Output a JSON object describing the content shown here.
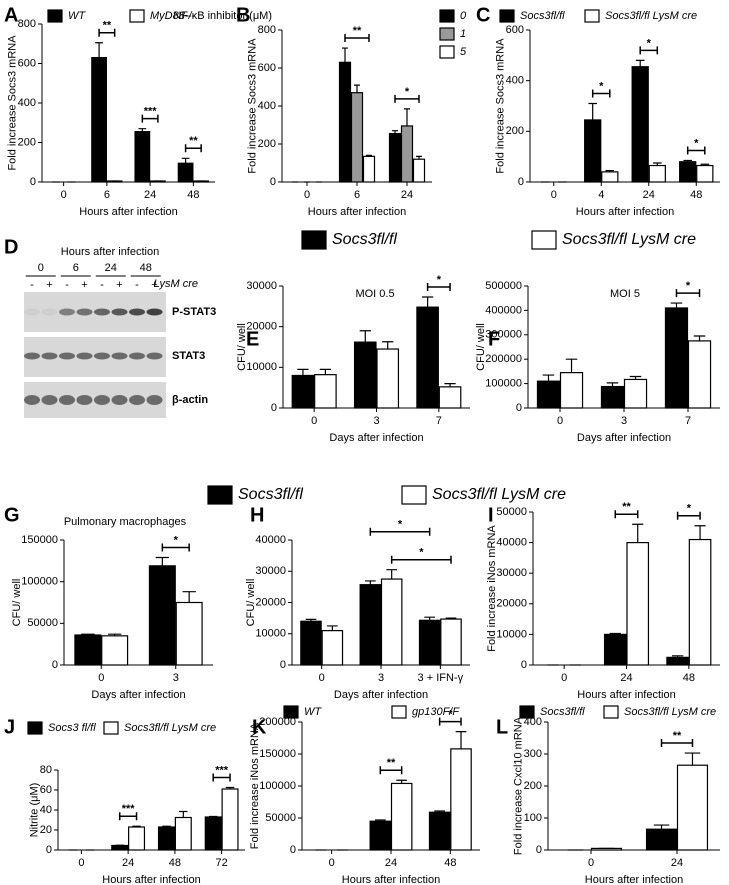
{
  "chart_data": [
    {
      "panel": "A",
      "type": "bar",
      "y_label": "Fold increase Socs3 mRNA",
      "x_label": "Hours after infection",
      "categories": [
        "0",
        "6",
        "24",
        "48"
      ],
      "series": [
        {
          "name": "WT",
          "color": "#000000",
          "values": [
            0,
            630,
            255,
            95
          ],
          "errors": [
            0,
            75,
            15,
            25
          ]
        },
        {
          "name": "MyD88-/-",
          "color": "#ffffff",
          "values": [
            0,
            5,
            5,
            5
          ],
          "errors": [
            0,
            0,
            0,
            0
          ]
        }
      ],
      "ylim": [
        0,
        800
      ],
      "yticks": [
        0,
        200,
        400,
        600,
        800
      ],
      "annotations": [
        "**",
        "***",
        "**"
      ]
    },
    {
      "panel": "B",
      "type": "bar",
      "legend_title": "NF-κB inhibitor (μM)",
      "y_label": "Fold increase Socs3 mRNA",
      "x_label": "Hours after infection",
      "categories": [
        "0",
        "6",
        "24"
      ],
      "series": [
        {
          "name": "0",
          "color": "#000000",
          "values": [
            0,
            630,
            255
          ],
          "errors": [
            0,
            75,
            15
          ]
        },
        {
          "name": "1",
          "color": "#999999",
          "values": [
            0,
            470,
            295
          ],
          "errors": [
            0,
            40,
            90
          ]
        },
        {
          "name": "5",
          "color": "#ffffff",
          "values": [
            0,
            135,
            120
          ],
          "errors": [
            0,
            5,
            15
          ]
        }
      ],
      "ylim": [
        0,
        800
      ],
      "yticks": [
        0,
        200,
        400,
        600,
        800
      ],
      "annotations": [
        "**",
        "*"
      ]
    },
    {
      "panel": "C",
      "type": "bar",
      "y_label": "Fold increase Socs3 mRNA",
      "x_label": "Hours after infection",
      "categories": [
        "0",
        "4",
        "24",
        "48"
      ],
      "series": [
        {
          "name": "Socs3fl/fl",
          "color": "#000000",
          "values": [
            0,
            245,
            455,
            80
          ],
          "errors": [
            0,
            65,
            25,
            5
          ]
        },
        {
          "name": "Socs3fl/fl LysM cre",
          "color": "#ffffff",
          "values": [
            0,
            40,
            65,
            65
          ],
          "errors": [
            0,
            5,
            10,
            5
          ]
        }
      ],
      "ylim": [
        0,
        600
      ],
      "yticks": [
        0,
        200,
        400,
        600
      ],
      "annotations": [
        "*",
        "*",
        "*"
      ]
    },
    {
      "panel": "E",
      "type": "bar",
      "title": "MOI 0.5",
      "y_label": "CFU/ well",
      "x_label": "Days after infection",
      "categories": [
        "0",
        "3",
        "7"
      ],
      "series": [
        {
          "name": "Socs3fl/fl",
          "color": "#000000",
          "values": [
            8000,
            16200,
            24800
          ],
          "errors": [
            1500,
            2800,
            2500
          ]
        },
        {
          "name": "Socs3fl/fl LysM cre",
          "color": "#ffffff",
          "values": [
            8200,
            14500,
            5200
          ],
          "errors": [
            1300,
            1800,
            800
          ]
        }
      ],
      "ylim": [
        0,
        30000
      ],
      "yticks": [
        0,
        10000,
        20000,
        30000
      ],
      "annotations": [
        "*"
      ]
    },
    {
      "panel": "F",
      "type": "bar",
      "title": "MOI 5",
      "y_label": "CFU/ well",
      "x_label": "Days after infection",
      "categories": [
        "0",
        "3",
        "7"
      ],
      "series": [
        {
          "color": "#000000",
          "values": [
            110000,
            88000,
            410000
          ],
          "errors": [
            25000,
            15000,
            20000
          ]
        },
        {
          "color": "#ffffff",
          "values": [
            145000,
            117000,
            275000
          ],
          "errors": [
            55000,
            12000,
            20000
          ]
        }
      ],
      "ylim": [
        0,
        500000
      ],
      "yticks": [
        0,
        100000,
        200000,
        300000,
        400000,
        500000
      ],
      "annotations": [
        "*"
      ]
    },
    {
      "panel": "G",
      "type": "bar",
      "title": "Pulmonary macrophages",
      "y_label": "CFU/ well",
      "x_label": "Days after infection",
      "categories": [
        "0",
        "3"
      ],
      "series": [
        {
          "name": "Socs3fl/fl",
          "color": "#000000",
          "values": [
            36000,
            119000
          ],
          "errors": [
            1000,
            10000
          ]
        },
        {
          "name": "Socs3fl/fl LysM cre",
          "color": "#ffffff",
          "values": [
            35000,
            75000
          ],
          "errors": [
            2000,
            13000
          ]
        }
      ],
      "ylim": [
        0,
        150000
      ],
      "yticks": [
        0,
        50000,
        100000,
        150000
      ],
      "annotations": [
        "*"
      ]
    },
    {
      "panel": "H",
      "type": "bar",
      "y_label": "CFU/ well",
      "x_label": "Days after infection",
      "categories": [
        "0",
        "3",
        "3 + IFN-γ"
      ],
      "series": [
        {
          "color": "#000000",
          "values": [
            14000,
            25700,
            14300
          ],
          "errors": [
            600,
            1200,
            1000
          ]
        },
        {
          "color": "#ffffff",
          "values": [
            11000,
            27500,
            14700
          ],
          "errors": [
            1500,
            3000,
            300
          ]
        }
      ],
      "ylim": [
        0,
        40000
      ],
      "yticks": [
        0,
        10000,
        20000,
        30000,
        40000
      ],
      "annotations": [
        "*",
        "*"
      ]
    },
    {
      "panel": "I",
      "type": "bar",
      "y_label": "Fold increase iNos mRNA",
      "x_label": "Hours after infection",
      "categories": [
        "0",
        "24",
        "48"
      ],
      "series": [
        {
          "color": "#000000",
          "values": [
            0,
            10000,
            2500
          ],
          "errors": [
            0,
            300,
            500
          ]
        },
        {
          "color": "#ffffff",
          "values": [
            0,
            40000,
            41000
          ],
          "errors": [
            0,
            6000,
            4500
          ]
        }
      ],
      "ylim": [
        0,
        50000
      ],
      "yticks": [
        0,
        10000,
        20000,
        30000,
        40000,
        50000
      ],
      "annotations": [
        "**",
        "*"
      ]
    },
    {
      "panel": "J",
      "type": "bar",
      "y_label": "Nitrite (μM)",
      "x_label": "Hours after infection",
      "categories": [
        "0",
        "24",
        "48",
        "72"
      ],
      "series": [
        {
          "name": "Socs3 fl/fl",
          "color": "#000000",
          "values": [
            0,
            4.5,
            23,
            33
          ],
          "errors": [
            0,
            0.3,
            0.8,
            0.5
          ]
        },
        {
          "name": "Socs3fl/fl LysM cre",
          "color": "#ffffff",
          "values": [
            0,
            23,
            32.5,
            61
          ],
          "errors": [
            0,
            0.8,
            6,
            1.5
          ]
        }
      ],
      "ylim": [
        0,
        80
      ],
      "yticks": [
        0,
        20,
        40,
        60,
        80
      ],
      "annotations": [
        "***",
        "***"
      ]
    },
    {
      "panel": "K",
      "type": "bar",
      "y_label": "Fold increase iNos mRNA",
      "x_label": "Hours after infection",
      "categories": [
        "0",
        "24",
        "48"
      ],
      "series": [
        {
          "name": "WT",
          "color": "#000000",
          "values": [
            0,
            45000,
            59000
          ],
          "errors": [
            0,
            2000,
            2000
          ]
        },
        {
          "name": "gp130F/F",
          "color": "#ffffff",
          "values": [
            0,
            104000,
            158000
          ],
          "errors": [
            0,
            5000,
            27000
          ]
        }
      ],
      "ylim": [
        0,
        200000
      ],
      "yticks": [
        0,
        50000,
        100000,
        150000,
        200000
      ],
      "annotations": [
        "**",
        "*"
      ]
    },
    {
      "panel": "L",
      "type": "bar",
      "y_label": "Fold increase Cxcl10 mRNA",
      "x_label": "Hours after infection",
      "categories": [
        "0",
        "24"
      ],
      "series": [
        {
          "name": "Socs3fl/fl",
          "color": "#000000",
          "values": [
            0,
            65
          ],
          "errors": [
            0,
            13
          ]
        },
        {
          "name": "Socs3fl/fl LysM cre",
          "color": "#ffffff",
          "values": [
            5,
            265
          ],
          "errors": [
            0,
            38
          ]
        }
      ],
      "ylim": [
        0,
        400
      ],
      "yticks": [
        0,
        100,
        200,
        300,
        400
      ],
      "annotations": [
        "**"
      ]
    }
  ],
  "blot": {
    "panel": "D",
    "title": "Hours after infection",
    "times": [
      "0",
      "6",
      "24",
      "48"
    ],
    "genotype": [
      "-",
      "+",
      "-",
      "+",
      "-",
      "+",
      "-",
      "+"
    ],
    "genotype_label": "LysM cre",
    "proteins": [
      "P-STAT3",
      "STAT3",
      "β-actin"
    ]
  }
}
